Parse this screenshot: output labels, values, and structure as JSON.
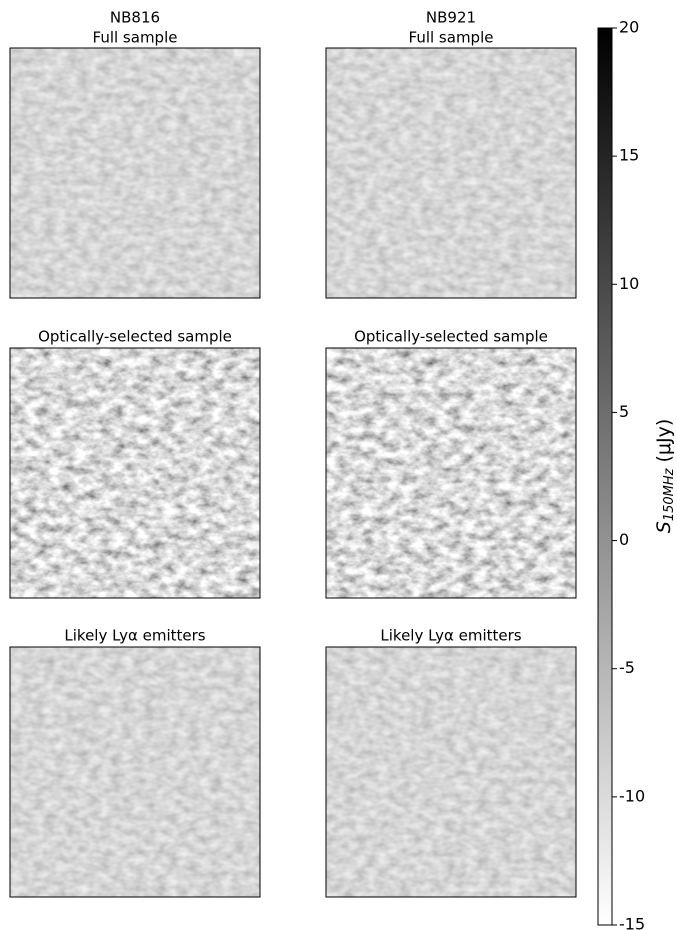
{
  "chart_data": {
    "type": "image-grid",
    "panels": [
      {
        "title": "NB816",
        "subtitle": "Full sample",
        "contrast": "low"
      },
      {
        "title": "NB921",
        "subtitle": "Full sample",
        "contrast": "low"
      },
      {
        "title": "Optically-selected sample",
        "contrast": "high"
      },
      {
        "title": "Optically-selected sample",
        "contrast": "high"
      },
      {
        "title": "Likely Lyα emitters",
        "contrast": "low"
      },
      {
        "title": "Likely Lyα emitters",
        "contrast": "low"
      }
    ],
    "colorbar": {
      "symbol": "S",
      "subscript": "150MHz",
      "unit": "(μJy)",
      "ylim": [
        -15,
        20
      ],
      "yticks": [
        -15,
        -10,
        -5,
        0,
        5,
        10,
        15,
        20
      ],
      "colors": [
        "#ffffff",
        "#000000"
      ]
    }
  }
}
